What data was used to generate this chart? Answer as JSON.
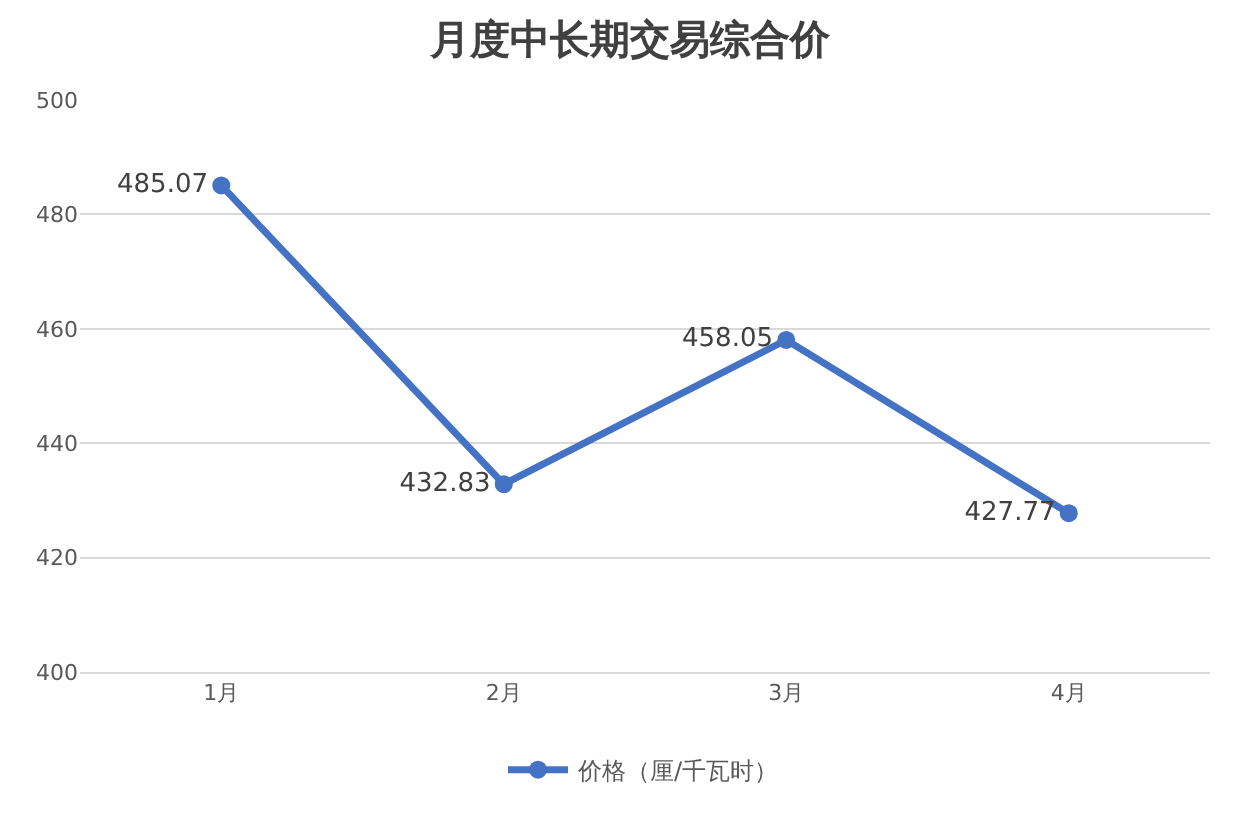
{
  "chart_data": {
    "type": "line",
    "title": "月度中长期交易综合价",
    "categories": [
      "1月",
      "2月",
      "3月",
      "4月"
    ],
    "series": [
      {
        "name": "价格（厘/千瓦时）",
        "color": "#4472c4",
        "values": [
          485.07,
          432.83,
          458.05,
          427.77
        ]
      }
    ],
    "ylim": [
      400,
      500
    ],
    "yticks": [
      400,
      420,
      440,
      460,
      480,
      500
    ],
    "grid": "y",
    "legend": "bottom",
    "marker": "circle",
    "line_style": "solid",
    "data_labels": true
  }
}
